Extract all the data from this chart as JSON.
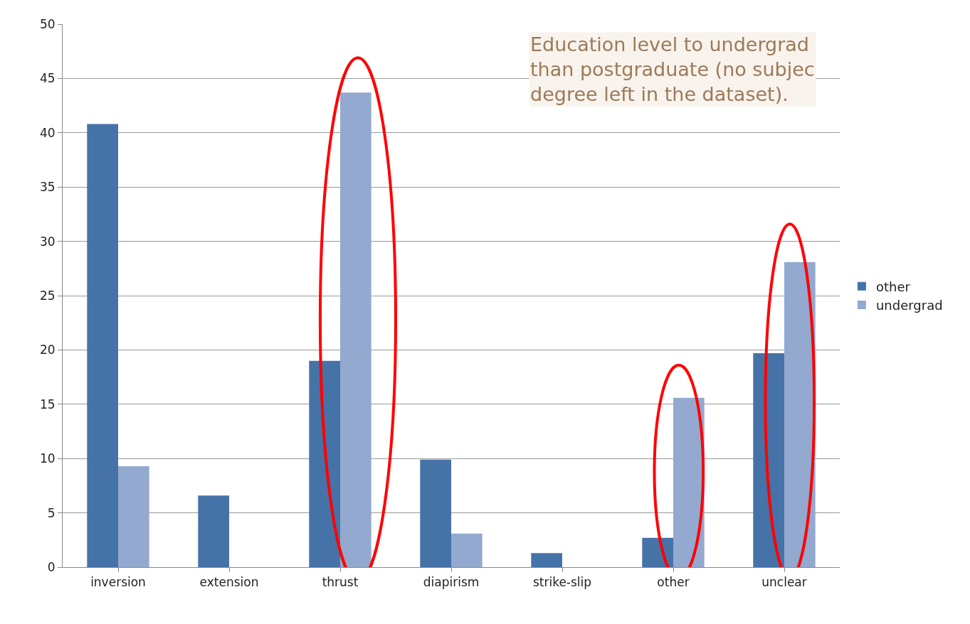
{
  "chart_data": {
    "type": "bar",
    "categories": [
      "inversion",
      "extension",
      "thrust",
      "diapirism",
      "strike-slip",
      "other",
      "unclear"
    ],
    "series": [
      {
        "name": "other",
        "color": "#4572a7",
        "values": [
          40.8,
          6.6,
          19.0,
          9.9,
          1.3,
          2.7,
          19.7
        ]
      },
      {
        "name": "undergrad",
        "color": "#93a9cf",
        "values": [
          9.3,
          0,
          43.7,
          3.1,
          0,
          15.6,
          28.1
        ]
      }
    ],
    "ylim": [
      0,
      50
    ],
    "yticks": [
      0,
      5,
      10,
      15,
      20,
      25,
      30,
      35,
      40,
      45,
      50
    ],
    "grid": "y",
    "legend": "right",
    "annotations": [
      "Education level to undergrad\nthan postgraduate (no subjec\ndegree left in the dataset)."
    ]
  }
}
